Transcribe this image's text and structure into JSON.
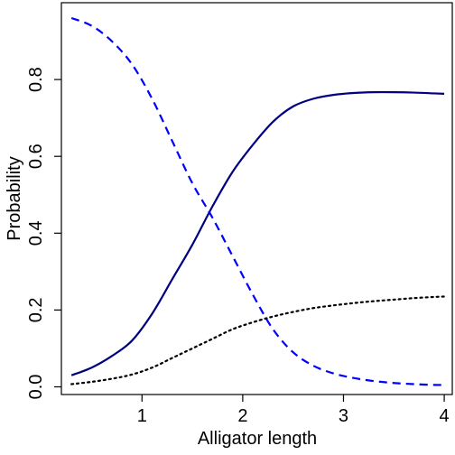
{
  "chart_data": {
    "type": "line",
    "title": "",
    "xlabel": "Alligator length",
    "ylabel": "Probability",
    "xlim": [
      0.2,
      4.08
    ],
    "ylim": [
      -0.02,
      1.0
    ],
    "xticks": [
      1,
      2,
      3,
      4
    ],
    "xtick_labels": [
      "1",
      "2",
      "3",
      "4"
    ],
    "yticks": [
      0.0,
      0.2,
      0.4,
      0.6,
      0.8
    ],
    "ytick_labels": [
      "0.0",
      "0.2",
      "0.4",
      "0.6",
      "0.8"
    ],
    "grid": false,
    "legend": "none",
    "series": [
      {
        "style": "solid",
        "color": "#000080",
        "x": [
          0.3,
          0.5,
          0.7,
          0.9,
          1.1,
          1.3,
          1.5,
          1.7,
          1.9,
          2.1,
          2.3,
          2.5,
          2.7,
          2.9,
          3.1,
          3.3,
          3.5,
          3.7,
          3.9,
          4.0
        ],
        "y": [
          0.03,
          0.05,
          0.08,
          0.12,
          0.19,
          0.28,
          0.37,
          0.47,
          0.56,
          0.63,
          0.69,
          0.73,
          0.75,
          0.76,
          0.765,
          0.767,
          0.767,
          0.766,
          0.764,
          0.763
        ]
      },
      {
        "style": "dashed",
        "color": "#0000ff",
        "x": [
          0.3,
          0.5,
          0.7,
          0.9,
          1.1,
          1.3,
          1.5,
          1.7,
          1.9,
          2.1,
          2.3,
          2.5,
          2.7,
          2.9,
          3.1,
          3.3,
          3.5,
          3.7,
          3.9,
          4.0
        ],
        "y": [
          0.96,
          0.94,
          0.9,
          0.84,
          0.75,
          0.64,
          0.53,
          0.44,
          0.34,
          0.24,
          0.15,
          0.09,
          0.055,
          0.035,
          0.023,
          0.015,
          0.01,
          0.007,
          0.005,
          0.005
        ]
      },
      {
        "style": "dotted",
        "color": "#000000",
        "x": [
          0.3,
          0.5,
          0.7,
          0.9,
          1.1,
          1.3,
          1.5,
          1.7,
          1.9,
          2.1,
          2.3,
          2.5,
          2.7,
          2.9,
          3.1,
          3.3,
          3.5,
          3.7,
          3.9,
          4.0
        ],
        "y": [
          0.007,
          0.013,
          0.021,
          0.032,
          0.05,
          0.075,
          0.1,
          0.125,
          0.15,
          0.168,
          0.183,
          0.195,
          0.205,
          0.212,
          0.218,
          0.223,
          0.227,
          0.231,
          0.234,
          0.235
        ]
      }
    ]
  }
}
